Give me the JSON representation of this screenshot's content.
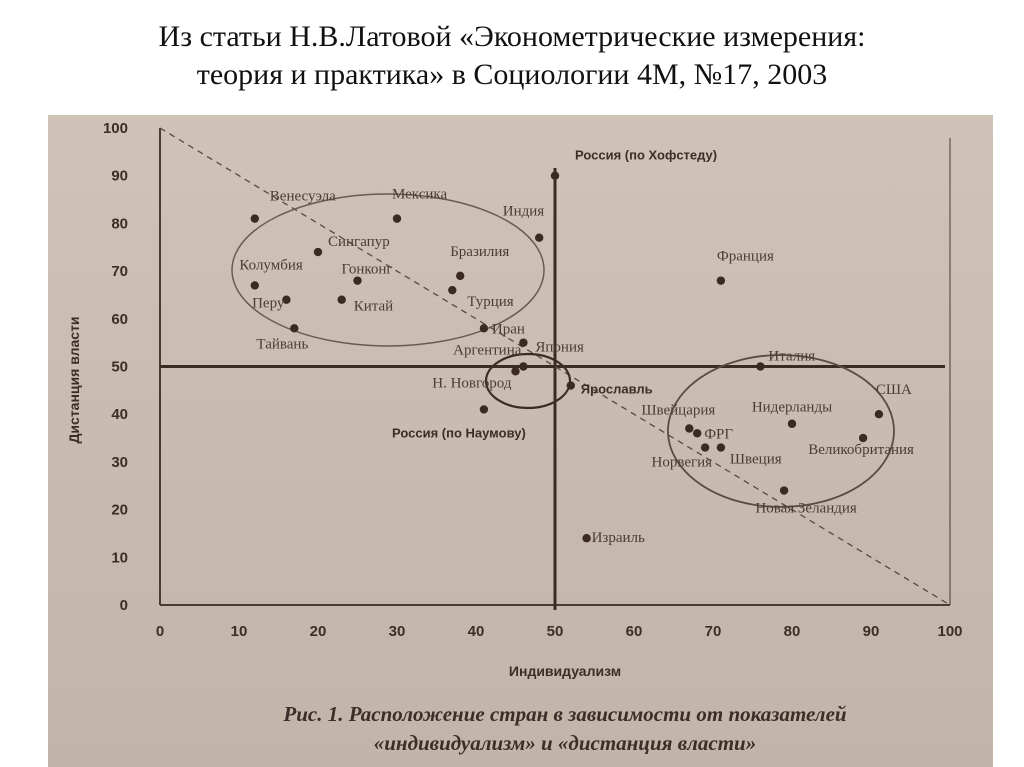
{
  "heading": {
    "line1": "Из статьи Н.В.Латовой «Эконометрические измерения:",
    "line2": "теория и практика» в Социологии 4М, №17, 2003"
  },
  "chart_data": {
    "type": "scatter",
    "xlabel": "Индивидуализм",
    "ylabel": "Дистанция власти",
    "xlim": [
      0,
      100
    ],
    "ylim": [
      0,
      100
    ],
    "xticks": [
      "0",
      "10",
      "20",
      "30",
      "40",
      "50",
      "60",
      "70",
      "80",
      "90",
      "100"
    ],
    "yticks": [
      "0",
      "10",
      "20",
      "30",
      "40",
      "50",
      "60",
      "70",
      "80",
      "90",
      "100"
    ],
    "grid": false,
    "reference_lines": {
      "x": 50,
      "y": 50,
      "diagonal": "dashed from (0,100) to (100,0)"
    },
    "points": [
      {
        "label": "Венесуэла",
        "x": 12,
        "y": 81
      },
      {
        "label": "Мексика",
        "x": 30,
        "y": 81
      },
      {
        "label": "Индия",
        "x": 48,
        "y": 77
      },
      {
        "label": "Сингапур",
        "x": 20,
        "y": 74
      },
      {
        "label": "Бразилия",
        "x": 38,
        "y": 69
      },
      {
        "label": "Колумбия",
        "x": 12,
        "y": 67
      },
      {
        "label": "Гонконг",
        "x": 25,
        "y": 68
      },
      {
        "label": "Турция",
        "x": 37,
        "y": 66
      },
      {
        "label": "Перу",
        "x": 16,
        "y": 64
      },
      {
        "label": "Китай",
        "x": 23,
        "y": 64
      },
      {
        "label": "Тайвань",
        "x": 17,
        "y": 58
      },
      {
        "label": "Иран",
        "x": 41,
        "y": 58
      },
      {
        "label": "Аргентина",
        "x": 46,
        "y": 55
      },
      {
        "label": "Япония",
        "x": 46,
        "y": 50
      },
      {
        "label": "Н. Новгород",
        "x": 45,
        "y": 49
      },
      {
        "label": "Россия (по Наумову)",
        "x": 41,
        "y": 41
      },
      {
        "label": "Ярославль",
        "x": 52,
        "y": 46
      },
      {
        "label": "Россия (по Хофстеду)",
        "x": 50,
        "y": 90
      },
      {
        "label": "Франция",
        "x": 71,
        "y": 68
      },
      {
        "label": "Италия",
        "x": 76,
        "y": 50
      },
      {
        "label": "США",
        "x": 91,
        "y": 40
      },
      {
        "label": "Нидерланды",
        "x": 80,
        "y": 38
      },
      {
        "label": "Великобритания",
        "x": 89,
        "y": 35
      },
      {
        "label": "Швейцария",
        "x": 67,
        "y": 37
      },
      {
        "label": "ФРГ",
        "x": 68,
        "y": 36
      },
      {
        "label": "Норвегия",
        "x": 69,
        "y": 33
      },
      {
        "label": "Швеция",
        "x": 71,
        "y": 33
      },
      {
        "label": "Новая Зеландия",
        "x": 79,
        "y": 24
      },
      {
        "label": "Израиль",
        "x": 54,
        "y": 14
      }
    ],
    "caption_line1": "Рис. 1. Расположение стран в зависимости от показателей",
    "caption_line2": "«индивидуализм» и «дистанция власти»"
  }
}
